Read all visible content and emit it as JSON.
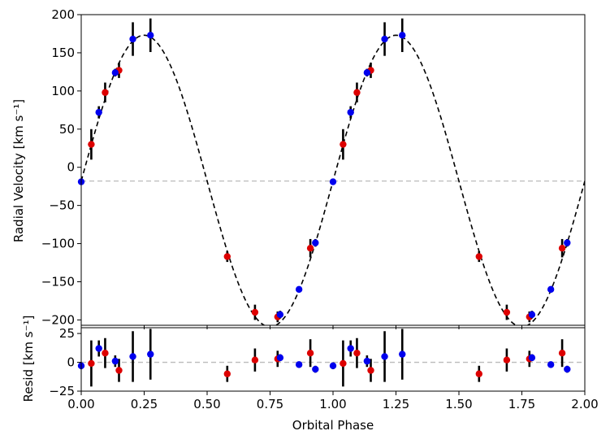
{
  "chart_data": [
    {
      "type": "scatter",
      "ylabel": "Radial Velocity [km s⁻¹]",
      "xlim": [
        0.0,
        2.0
      ],
      "ylim": [
        -207,
        200
      ],
      "yticks": [
        200,
        150,
        100,
        50,
        0,
        -50,
        -100,
        -150,
        -200
      ],
      "ytick_labels": [
        "200",
        "150",
        "100",
        "50",
        "0",
        "−50",
        "−100",
        "−150",
        "−200"
      ],
      "systemic_velocity": -18,
      "model": {
        "style": "dashed",
        "color": "#000000",
        "amplitude": 191,
        "offset": -18,
        "peak_phase": 0.25
      },
      "reference_line": {
        "value": -18,
        "style": "dashed",
        "color": "#bbbbbb"
      },
      "series": [
        {
          "color": "#dd0000",
          "points": [
            {
              "x": 0.04,
              "y": 30,
              "err": 20
            },
            {
              "x": 0.095,
              "y": 98,
              "err": 13
            },
            {
              "x": 0.15,
              "y": 127,
              "err": 10
            },
            {
              "x": 0.58,
              "y": -117,
              "err": 7
            },
            {
              "x": 0.69,
              "y": -190,
              "err": 10
            },
            {
              "x": 0.78,
              "y": -196,
              "err": 7
            },
            {
              "x": 0.91,
              "y": -106,
              "err": 12
            },
            {
              "x": 1.04,
              "y": 30,
              "err": 20
            },
            {
              "x": 1.095,
              "y": 98,
              "err": 13
            },
            {
              "x": 1.15,
              "y": 127,
              "err": 10
            },
            {
              "x": 1.58,
              "y": -117,
              "err": 7
            },
            {
              "x": 1.69,
              "y": -190,
              "err": 10
            },
            {
              "x": 1.78,
              "y": -196,
              "err": 7
            },
            {
              "x": 1.91,
              "y": -106,
              "err": 12
            }
          ]
        },
        {
          "color": "#0000ee",
          "points": [
            {
              "x": 0.0,
              "y": -19,
              "err": 3
            },
            {
              "x": 0.07,
              "y": 72,
              "err": 8
            },
            {
              "x": 0.135,
              "y": 124,
              "err": 5
            },
            {
              "x": 0.205,
              "y": 168,
              "err": 22
            },
            {
              "x": 0.275,
              "y": 173,
              "err": 22
            },
            {
              "x": 0.79,
              "y": -193,
              "err": 5
            },
            {
              "x": 0.865,
              "y": -160,
              "err": 3
            },
            {
              "x": 0.93,
              "y": -99,
              "err": 5
            },
            {
              "x": 1.0,
              "y": -19,
              "err": 3
            },
            {
              "x": 1.07,
              "y": 72,
              "err": 8
            },
            {
              "x": 1.135,
              "y": 124,
              "err": 5
            },
            {
              "x": 1.205,
              "y": 168,
              "err": 22
            },
            {
              "x": 1.275,
              "y": 173,
              "err": 22
            },
            {
              "x": 1.79,
              "y": -193,
              "err": 5
            },
            {
              "x": 1.865,
              "y": -160,
              "err": 3
            },
            {
              "x": 1.93,
              "y": -99,
              "err": 5
            }
          ]
        }
      ]
    },
    {
      "type": "scatter",
      "xlabel": "Orbital Phase",
      "ylabel": "Resid [km s⁻¹]",
      "xlim": [
        0.0,
        2.0
      ],
      "ylim": [
        -25,
        30
      ],
      "xticks": [
        0.0,
        0.25,
        0.5,
        0.75,
        1.0,
        1.25,
        1.5,
        1.75,
        2.0
      ],
      "xtick_labels": [
        "0.00",
        "0.25",
        "0.50",
        "0.75",
        "1.00",
        "1.25",
        "1.50",
        "1.75",
        "2.00"
      ],
      "yticks": [
        25,
        0,
        -25
      ],
      "ytick_labels": [
        "25",
        "0",
        "−25"
      ],
      "reference_line": {
        "value": 0,
        "style": "dashed",
        "color": "#bbbbbb"
      },
      "series": [
        {
          "color": "#dd0000",
          "points": [
            {
              "x": 0.04,
              "y": -1,
              "err": 20
            },
            {
              "x": 0.095,
              "y": 8,
              "err": 13
            },
            {
              "x": 0.15,
              "y": -7,
              "err": 10
            },
            {
              "x": 0.58,
              "y": -10,
              "err": 7
            },
            {
              "x": 0.69,
              "y": 2,
              "err": 10
            },
            {
              "x": 0.78,
              "y": 3,
              "err": 7
            },
            {
              "x": 0.91,
              "y": 8,
              "err": 12
            },
            {
              "x": 1.04,
              "y": -1,
              "err": 20
            },
            {
              "x": 1.095,
              "y": 8,
              "err": 13
            },
            {
              "x": 1.15,
              "y": -7,
              "err": 10
            },
            {
              "x": 1.58,
              "y": -10,
              "err": 7
            },
            {
              "x": 1.69,
              "y": 2,
              "err": 10
            },
            {
              "x": 1.78,
              "y": 3,
              "err": 7
            },
            {
              "x": 1.91,
              "y": 8,
              "err": 12
            }
          ]
        },
        {
          "color": "#0000ee",
          "points": [
            {
              "x": 0.0,
              "y": -3,
              "err": 3
            },
            {
              "x": 0.07,
              "y": 12,
              "err": 7
            },
            {
              "x": 0.135,
              "y": 1,
              "err": 5
            },
            {
              "x": 0.205,
              "y": 5,
              "err": 22
            },
            {
              "x": 0.275,
              "y": 7,
              "err": 22
            },
            {
              "x": 0.79,
              "y": 4,
              "err": 3
            },
            {
              "x": 0.865,
              "y": -2,
              "err": 2
            },
            {
              "x": 0.93,
              "y": -6,
              "err": 3
            },
            {
              "x": 1.0,
              "y": -3,
              "err": 3
            },
            {
              "x": 1.07,
              "y": 12,
              "err": 7
            },
            {
              "x": 1.135,
              "y": 1,
              "err": 5
            },
            {
              "x": 1.205,
              "y": 5,
              "err": 22
            },
            {
              "x": 1.275,
              "y": 7,
              "err": 22
            },
            {
              "x": 1.79,
              "y": 4,
              "err": 3
            },
            {
              "x": 1.865,
              "y": -2,
              "err": 2
            },
            {
              "x": 1.93,
              "y": -6,
              "err": 3
            }
          ]
        }
      ]
    }
  ]
}
